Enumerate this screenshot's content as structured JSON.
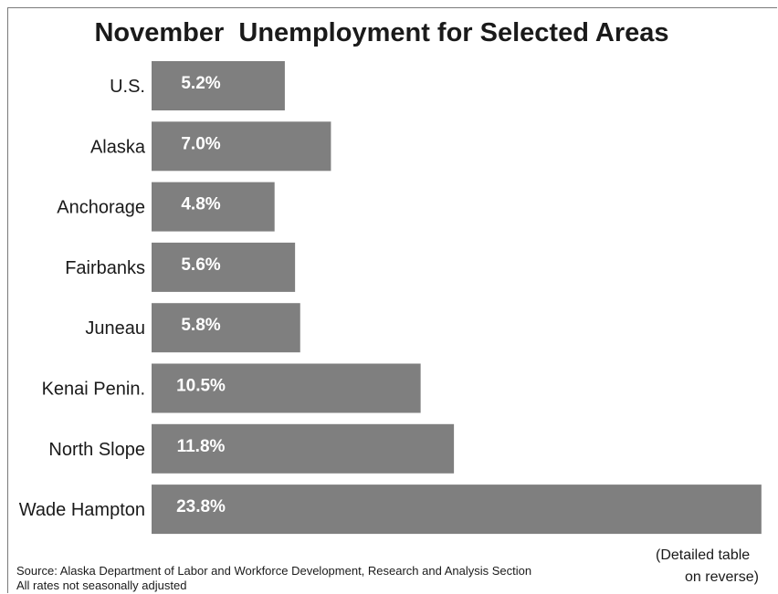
{
  "chart_data": {
    "type": "bar",
    "orientation": "horizontal",
    "title": "November  Unemployment for Selected Areas",
    "categories": [
      "U.S.",
      "Alaska",
      "Anchorage",
      "Fairbanks",
      "Juneau",
      "Kenai Penin.",
      "North Slope",
      "Wade Hampton"
    ],
    "values": [
      5.2,
      7.0,
      4.8,
      5.6,
      5.8,
      10.5,
      11.8,
      23.8
    ],
    "value_labels": [
      "5.2%",
      "7.0%",
      "4.8%",
      "5.6%",
      "5.8%",
      "10.5%",
      "11.8%",
      "23.8%"
    ],
    "xlim": [
      0,
      24
    ],
    "grid": false,
    "bar_color": "#7f7f7f",
    "label_color": "#ffffff"
  },
  "footer": {
    "source": "Source: Alaska Department of Labor and Workforce Development, Research and Analysis Section",
    "note": "All rates not seasonally adjusted",
    "detail_line1": "(Detailed table",
    "detail_line2": "on reverse)"
  }
}
